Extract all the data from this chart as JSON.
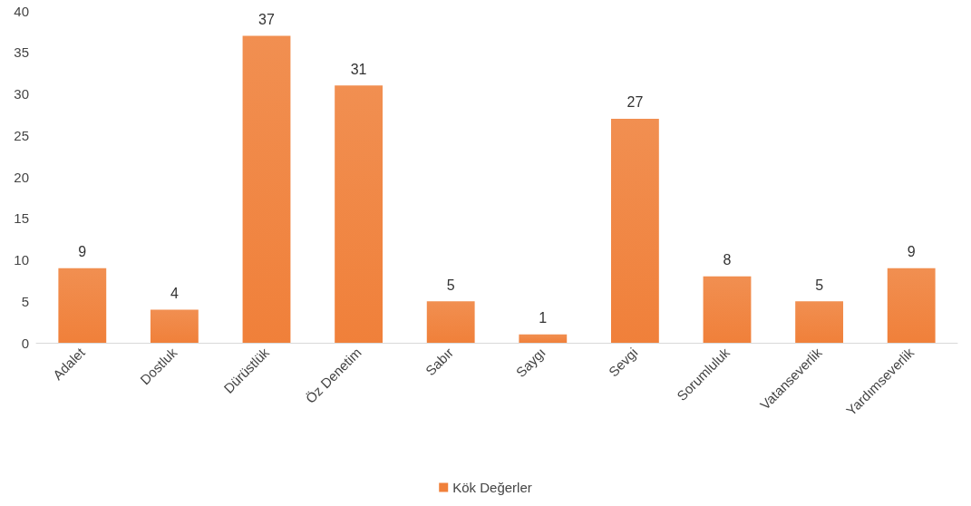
{
  "chart_data": {
    "type": "bar",
    "categories": [
      "Adalet",
      "Dostluk",
      "Dürüstlük",
      "Öz Denetim",
      "Sabır",
      "Saygı",
      "Sevgi",
      "Sorumluluk",
      "Vatanseverlik",
      "Yardımseverlik"
    ],
    "series": [
      {
        "name": "Kök Değerler",
        "color": "#f0803a",
        "values": [
          9,
          4,
          37,
          31,
          5,
          1,
          27,
          8,
          5,
          9
        ]
      }
    ],
    "ylim": [
      0,
      40
    ],
    "yticks": [
      0,
      5,
      10,
      15,
      20,
      25,
      30,
      35,
      40
    ],
    "data_labels": true,
    "grid": false,
    "legend": "bottom"
  }
}
